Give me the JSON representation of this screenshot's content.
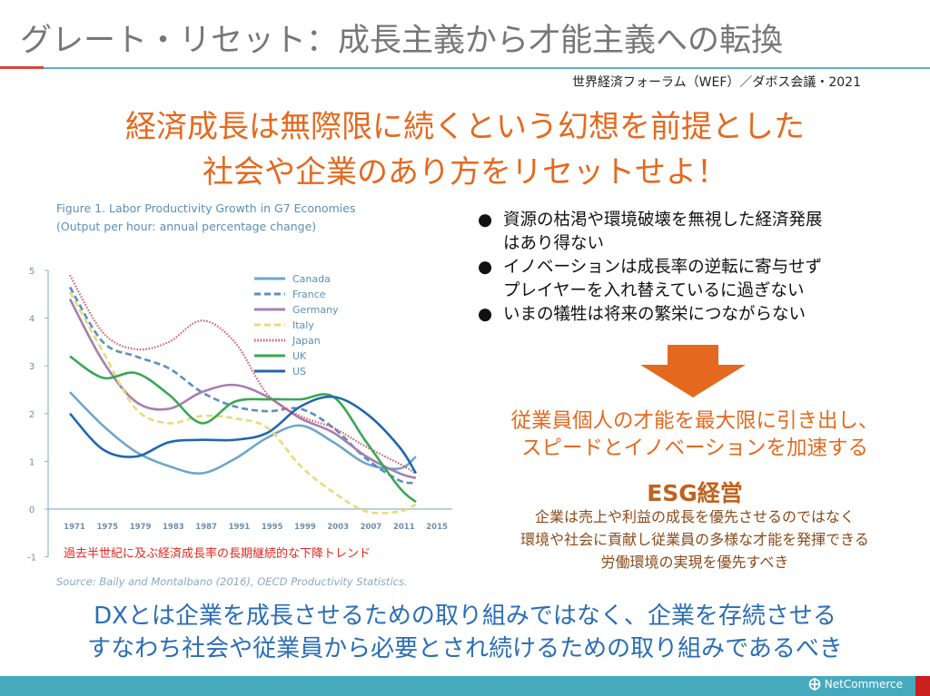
{
  "header": {
    "title": "グレート・リセット：成長主義から才能主義への転換",
    "subtitle": "世界経済フォーラム（WEF）／ダボス会議・2021"
  },
  "headline": [
    "経済成長は無際限に続くという幻想を前提とした",
    "社会や企業のあり方をリセットせよ！"
  ],
  "bullets": [
    "資源の枯渇や環境破壊を無視した経済発展はあり得ない",
    "イノベーションは成長率の逆転に寄与せずプレイヤーを入れ替えているに過ぎない",
    "いまの犠牲は将来の繁栄につながらない"
  ],
  "bullet_lines": [
    [
      "資源の枯渇や環境破壊を無視した経済発展",
      "はあり得ない"
    ],
    [
      "イノベーションは成長率の逆転に寄与せず",
      "プレイヤーを入れ替えているに過ぎない"
    ],
    [
      "いまの犠牲は将来の繁栄につながらない"
    ]
  ],
  "bullet_symbol": "●",
  "conclusion": [
    "従業員個人の才能を最大限に引き出し、",
    "スピードとイノベーションを加速する"
  ],
  "esg": {
    "title": "ESG経営",
    "lines": [
      "企業は売上や利益の成長を優先させるのではなく",
      "環境や社会に貢献し従業員の多様な才能を発揮できる",
      "労働環境の実現を優先すべき"
    ]
  },
  "bottom": [
    "DXとは企業を成長させるための取り組みではなく、企業を存続させる",
    "すなわち社会や従業員から必要とされ続けるための取り組みであるべき"
  ],
  "footer": {
    "logo": "NetCommerce"
  },
  "chart_annotation": "過去半世紀に及ぶ経済成長率の長期継続的な下降トレンド",
  "chart_data": {
    "type": "line",
    "title": "Figure 1. Labor Productivity Growth in G7 Economies",
    "subtitle": "(Output per hour: annual percentage change)",
    "source": "Source: Baily and Montalbano (2016), OECD Productivity Statistics.",
    "ylim": [
      -1,
      5
    ],
    "yticks": [
      "5",
      "4",
      "3",
      "2",
      "1",
      "0",
      "-1"
    ],
    "ytick_values": [
      5,
      4,
      3,
      2,
      1,
      0,
      -1
    ],
    "xticks": [
      "1971",
      "1975",
      "1979",
      "1983",
      "1987",
      "1991",
      "1995",
      "1999",
      "2003",
      "2007",
      "2011",
      "2015"
    ],
    "xtick_values": [
      1971,
      1975,
      1979,
      1983,
      1987,
      1991,
      1995,
      1999,
      2003,
      2007,
      2011,
      2015
    ],
    "legend_position": "top-right",
    "x": [
      1971,
      1975,
      1979,
      1983,
      1987,
      1991,
      1995,
      1999,
      2003,
      2007,
      2011,
      2013
    ],
    "series": [
      {
        "name": "Canada",
        "color": "#6ea6cc",
        "style": "solid",
        "values": [
          2.45,
          1.75,
          1.2,
          0.9,
          0.75,
          1.05,
          1.5,
          1.75,
          1.4,
          0.95,
          0.85,
          1.1
        ]
      },
      {
        "name": "France",
        "color": "#5a8fc0",
        "style": "dashed",
        "values": [
          4.65,
          3.5,
          3.2,
          2.95,
          2.45,
          2.15,
          2.05,
          2.1,
          1.7,
          1.05,
          0.6,
          0.55
        ]
      },
      {
        "name": "Germany",
        "color": "#a47fb0",
        "style": "solid",
        "values": [
          4.4,
          3.1,
          2.25,
          2.1,
          2.45,
          2.6,
          2.35,
          1.9,
          1.6,
          1.1,
          0.75,
          0.65
        ]
      },
      {
        "name": "Italy",
        "color": "#e6dd78",
        "style": "dashed",
        "values": [
          4.55,
          3.3,
          2.1,
          1.8,
          1.95,
          1.9,
          1.7,
          0.9,
          0.35,
          -0.05,
          -0.05,
          0.1
        ]
      },
      {
        "name": "Japan",
        "color": "#d9586a",
        "style": "dotted",
        "values": [
          4.9,
          3.7,
          3.35,
          3.5,
          3.95,
          3.5,
          2.4,
          1.95,
          1.7,
          1.3,
          0.95,
          0.75
        ]
      },
      {
        "name": "UK",
        "color": "#3aa655",
        "style": "solid",
        "values": [
          3.2,
          2.75,
          2.85,
          2.4,
          1.8,
          2.25,
          2.3,
          2.3,
          2.35,
          1.4,
          0.45,
          0.15
        ]
      },
      {
        "name": "US",
        "color": "#2167ae",
        "style": "solid",
        "values": [
          2.0,
          1.25,
          1.1,
          1.4,
          1.45,
          1.45,
          1.6,
          2.15,
          2.35,
          2.0,
          1.3,
          0.75
        ]
      }
    ]
  },
  "colors": {
    "accent": "#e4691e",
    "blue": "#2a6db5",
    "teal": "#46aabf"
  }
}
